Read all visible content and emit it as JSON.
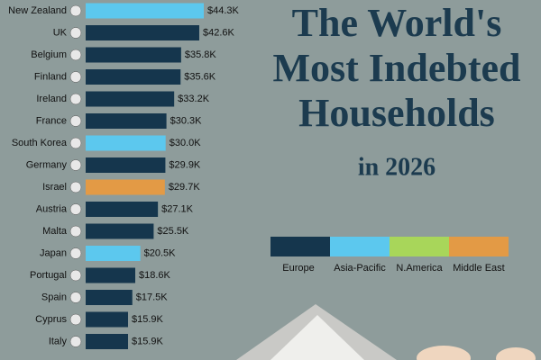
{
  "chart_data": {
    "type": "bar",
    "orientation": "horizontal",
    "title": [
      "The World's",
      "Most Indebted",
      "Households"
    ],
    "subtitle": "in 2026",
    "categories": [
      "New Zealand",
      "UK",
      "Belgium",
      "Finland",
      "Ireland",
      "France",
      "South Korea",
      "Germany",
      "Israel",
      "Austria",
      "Malta",
      "Japan",
      "Portugal",
      "Spain",
      "Cyprus",
      "Italy"
    ],
    "values": [
      44300,
      42600,
      35800,
      35600,
      33200,
      30300,
      30000,
      29900,
      29700,
      27100,
      25500,
      20500,
      18600,
      17500,
      15900,
      15900
    ],
    "value_labels": [
      "$44.3K",
      "$42.6K",
      "$35.8K",
      "$35.6K",
      "$33.2K",
      "$30.3K",
      "$30.0K",
      "$29.9K",
      "$29.7K",
      "$27.1K",
      "$25.5K",
      "$20.5K",
      "$18.6K",
      "$17.5K",
      "$15.9K",
      "$15.9K"
    ],
    "colors": [
      "#5cc8ee",
      "#15364d",
      "#15364d",
      "#15364d",
      "#15364d",
      "#15364d",
      "#5cc8ee",
      "#15364d",
      "#e39a45",
      "#15364d",
      "#15364d",
      "#5cc8ee",
      "#15364d",
      "#15364d",
      "#15364d",
      "#15364d"
    ],
    "legend": [
      {
        "name": "Europe",
        "color": "#15364d"
      },
      {
        "name": "Asia-Pacific",
        "color": "#5cc8ee"
      },
      {
        "name": "N.America",
        "color": "#a8d65a"
      },
      {
        "name": "Middle East",
        "color": "#e39a45"
      }
    ]
  }
}
